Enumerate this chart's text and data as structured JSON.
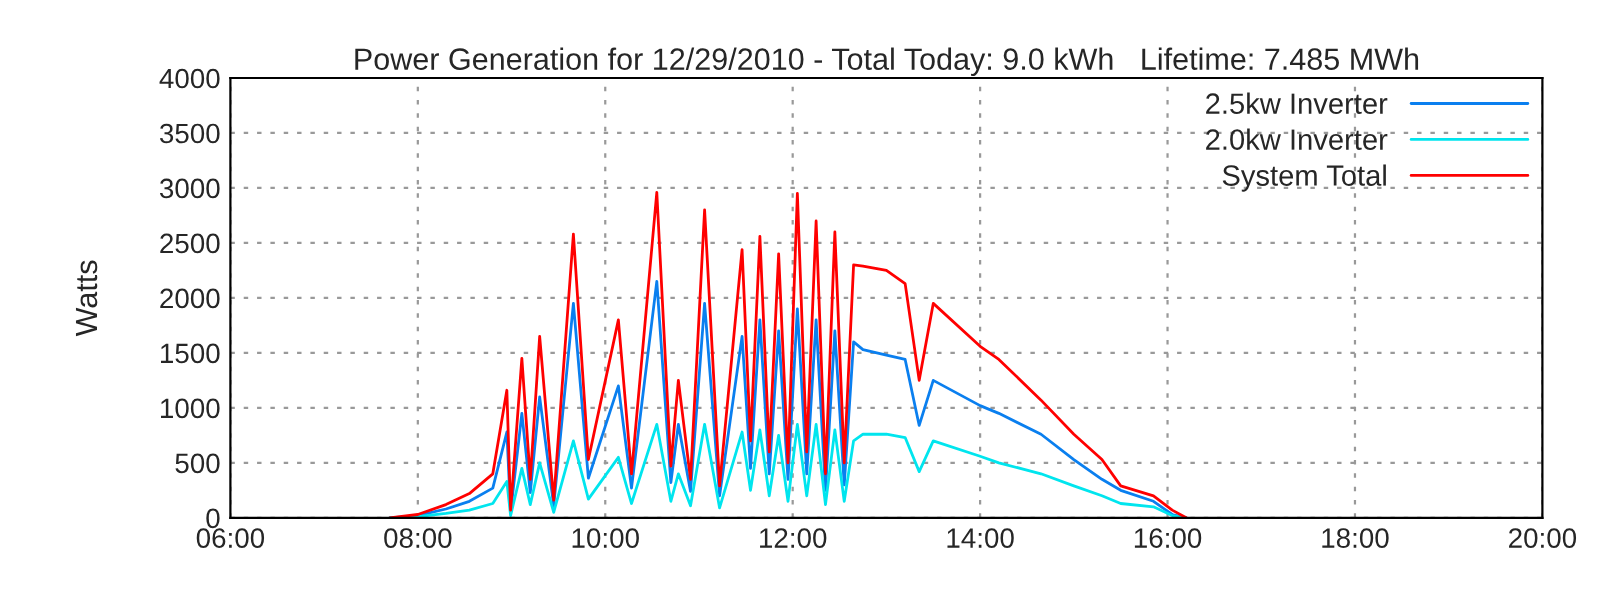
{
  "chart_data": {
    "type": "line",
    "title": "Power Generation for 12/29/2010 - Total Today: 9.0 kWh   Lifetime: 7.485 MWh",
    "ylabel": "Watts",
    "x": [
      7.7,
      8.0,
      8.3,
      8.55,
      8.8,
      8.95,
      8.99,
      9.11,
      9.2,
      9.3,
      9.45,
      9.66,
      9.82,
      10.14,
      10.28,
      10.55,
      10.7,
      10.78,
      10.91,
      11.06,
      11.22,
      11.46,
      11.55,
      11.65,
      11.75,
      11.85,
      11.95,
      12.05,
      12.15,
      12.25,
      12.35,
      12.45,
      12.55,
      12.65,
      12.75,
      13.0,
      13.2,
      13.35,
      13.5,
      14.0,
      14.2,
      14.65,
      15.0,
      15.3,
      15.5,
      15.85,
      16.05,
      16.2
    ],
    "series": [
      {
        "name": "2.5kw Inverter",
        "color": "#0a7fef",
        "values": [
          0,
          20,
          80,
          150,
          270,
          780,
          50,
          950,
          230,
          1100,
          110,
          1950,
          360,
          1200,
          270,
          2150,
          320,
          850,
          240,
          1950,
          200,
          1650,
          450,
          1800,
          400,
          1700,
          350,
          1900,
          400,
          1800,
          250,
          1700,
          300,
          1600,
          1530,
          1480,
          1440,
          840,
          1250,
          1020,
          950,
          760,
          530,
          350,
          250,
          150,
          30,
          0
        ]
      },
      {
        "name": "2.0kw Inverter",
        "color": "#00e5ee",
        "values": [
          0,
          10,
          40,
          70,
          130,
          330,
          20,
          450,
          120,
          500,
          50,
          700,
          170,
          550,
          130,
          850,
          150,
          400,
          110,
          850,
          90,
          780,
          250,
          800,
          200,
          750,
          150,
          850,
          200,
          850,
          120,
          800,
          150,
          700,
          760,
          760,
          730,
          420,
          700,
          560,
          500,
          400,
          290,
          200,
          130,
          100,
          20,
          0
        ]
      },
      {
        "name": "System Total",
        "color": "#ff0000",
        "values": [
          0,
          30,
          120,
          220,
          400,
          1160,
          70,
          1450,
          350,
          1650,
          160,
          2580,
          530,
          1800,
          400,
          2960,
          470,
          1250,
          350,
          2800,
          290,
          2440,
          700,
          2560,
          600,
          2400,
          500,
          2950,
          600,
          2700,
          400,
          2600,
          500,
          2300,
          2290,
          2250,
          2130,
          1250,
          1950,
          1560,
          1440,
          1070,
          760,
          530,
          290,
          200,
          70,
          0
        ]
      }
    ],
    "xlim": [
      6,
      20
    ],
    "xticks": [
      {
        "value": 6,
        "label": "06:00"
      },
      {
        "value": 8,
        "label": "08:00"
      },
      {
        "value": 10,
        "label": "10:00"
      },
      {
        "value": 12,
        "label": "12:00"
      },
      {
        "value": 14,
        "label": "14:00"
      },
      {
        "value": 16,
        "label": "16:00"
      },
      {
        "value": 18,
        "label": "18:00"
      },
      {
        "value": 20,
        "label": "20:00"
      }
    ],
    "ylim": [
      0,
      4000
    ],
    "yticks": [
      0,
      500,
      1000,
      1500,
      2000,
      2500,
      3000,
      3500,
      4000
    ],
    "grid": true,
    "legend": "top right",
    "marker": "none",
    "line_style": "solid"
  }
}
